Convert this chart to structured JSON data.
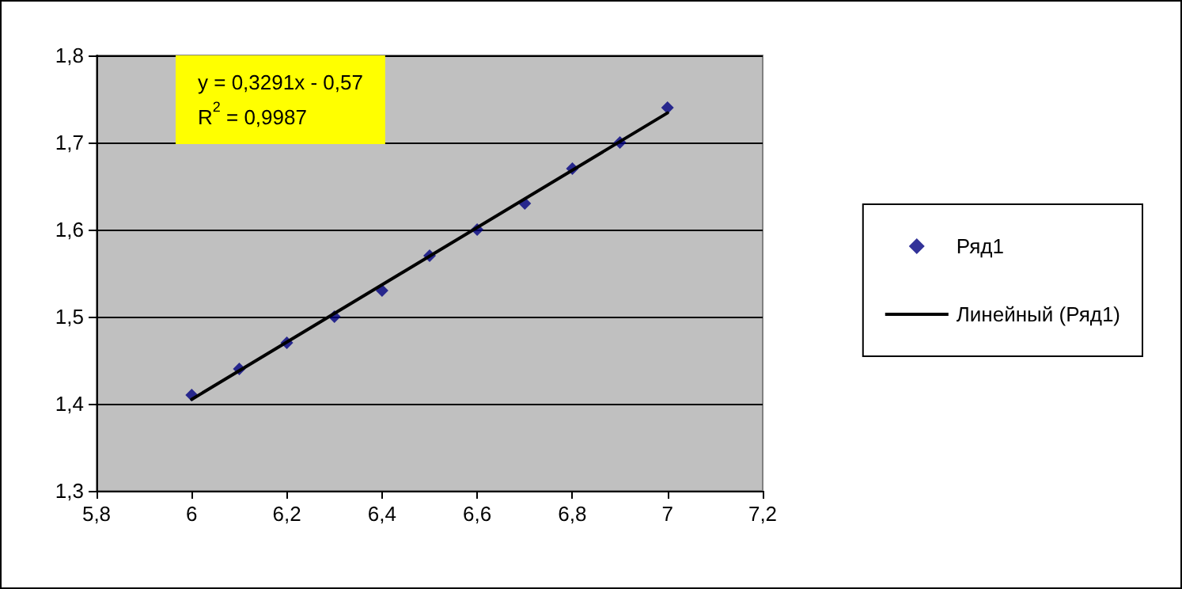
{
  "chart_data": {
    "type": "scatter",
    "x": [
      6,
      6.1,
      6.2,
      6.3,
      6.4,
      6.5,
      6.6,
      6.7,
      6.8,
      6.9,
      7
    ],
    "series": [
      {
        "name": "Ряд1",
        "color": "#000080",
        "marker": "diamond",
        "values": [
          1.41,
          1.44,
          1.47,
          1.5,
          1.53,
          1.57,
          1.6,
          1.63,
          1.67,
          1.7,
          1.74
        ]
      },
      {
        "name": "Линейный (Ряд1)",
        "type": "line",
        "color": "#000000",
        "marker": "none",
        "x": [
          6,
          7
        ],
        "values": [
          1.405,
          1.734
        ]
      }
    ],
    "xlim": [
      5.8,
      7.2
    ],
    "xticks": [
      {
        "value": 5.8,
        "label": "5,8"
      },
      {
        "value": 6,
        "label": "6"
      },
      {
        "value": 6.2,
        "label": "6,2"
      },
      {
        "value": 6.4,
        "label": "6,4"
      },
      {
        "value": 6.6,
        "label": "6,6"
      },
      {
        "value": 6.8,
        "label": "6,8"
      },
      {
        "value": 7,
        "label": "7"
      },
      {
        "value": 7.2,
        "label": "7,2"
      }
    ],
    "ylim": [
      1.3,
      1.8
    ],
    "yticks": [
      {
        "value": 1.3,
        "label": "1,3"
      },
      {
        "value": 1.4,
        "label": "1,4"
      },
      {
        "value": 1.5,
        "label": "1,5"
      },
      {
        "value": 1.6,
        "label": "1,6"
      },
      {
        "value": 1.7,
        "label": "1,7"
      },
      {
        "value": 1.8,
        "label": "1,8"
      }
    ],
    "grid": "y",
    "legend": "right",
    "line_style": "solid",
    "annotations": [
      "y = 0,3291x - 0,57",
      "R$^{2}$ = 0,9987"
    ]
  }
}
